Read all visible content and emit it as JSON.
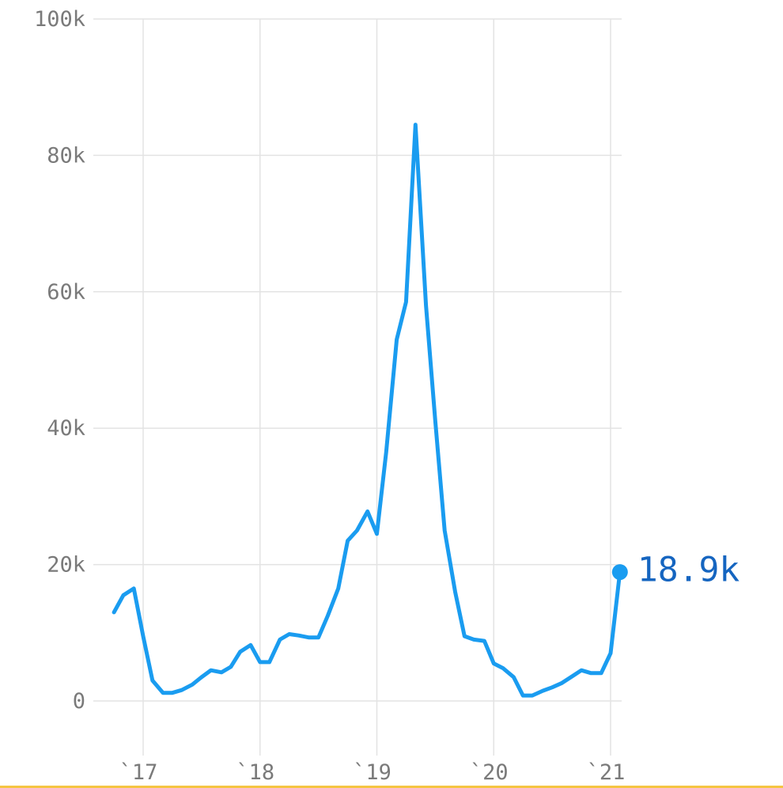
{
  "chart_data": {
    "type": "line",
    "title": "",
    "xlabel": "",
    "ylabel": "",
    "x_ticks": [
      {
        "label": "`17",
        "x": 2017.0
      },
      {
        "label": "`18",
        "x": 2018.0
      },
      {
        "label": "`19",
        "x": 2019.0
      },
      {
        "label": "`20",
        "x": 2020.0
      },
      {
        "label": "`21",
        "x": 2021.0
      }
    ],
    "y_ticks": [
      {
        "label": "0",
        "y": 0
      },
      {
        "label": "20k",
        "y": 20000
      },
      {
        "label": "40k",
        "y": 40000
      },
      {
        "label": "60k",
        "y": 60000
      },
      {
        "label": "80k",
        "y": 80000
      },
      {
        "label": "100k",
        "y": 100000
      }
    ],
    "ylim": [
      0,
      100000
    ],
    "grid": true,
    "line_color": "#1a9cf0",
    "end_label_color": "#1565c0",
    "end_label": "18.9k",
    "series": [
      {
        "x": [
          2016.75,
          2016.83,
          2016.92,
          2017.0,
          2017.08,
          2017.17,
          2017.25,
          2017.33,
          2017.42,
          2017.5,
          2017.58,
          2017.67,
          2017.75,
          2017.83,
          2017.92,
          2018.0,
          2018.08,
          2018.17,
          2018.25,
          2018.33,
          2018.42,
          2018.5,
          2018.58,
          2018.67,
          2018.75,
          2018.83,
          2018.92,
          2019.0,
          2019.08,
          2019.17,
          2019.25,
          2019.33,
          2019.42,
          2019.5,
          2019.58,
          2019.67,
          2019.75,
          2019.83,
          2019.92,
          2020.0,
          2020.08,
          2020.17,
          2020.25,
          2020.33,
          2020.42,
          2020.5,
          2020.58,
          2020.67,
          2020.75,
          2020.83,
          2020.92,
          2021.0,
          2021.08
        ],
        "y": [
          13000,
          15500,
          16500,
          9500,
          3000,
          1200,
          1200,
          1600,
          2400,
          3500,
          4500,
          4200,
          5000,
          7200,
          8200,
          5700,
          5700,
          9000,
          9800,
          9600,
          9300,
          9300,
          12500,
          16500,
          23500,
          25000,
          27800,
          24500,
          36500,
          53000,
          58500,
          84500,
          58000,
          41000,
          25000,
          16000,
          9500,
          9000,
          8800,
          5500,
          4800,
          3500,
          800,
          800,
          1500,
          2000,
          2600,
          3600,
          4500,
          4100,
          4100,
          7000,
          18900
        ]
      }
    ]
  }
}
